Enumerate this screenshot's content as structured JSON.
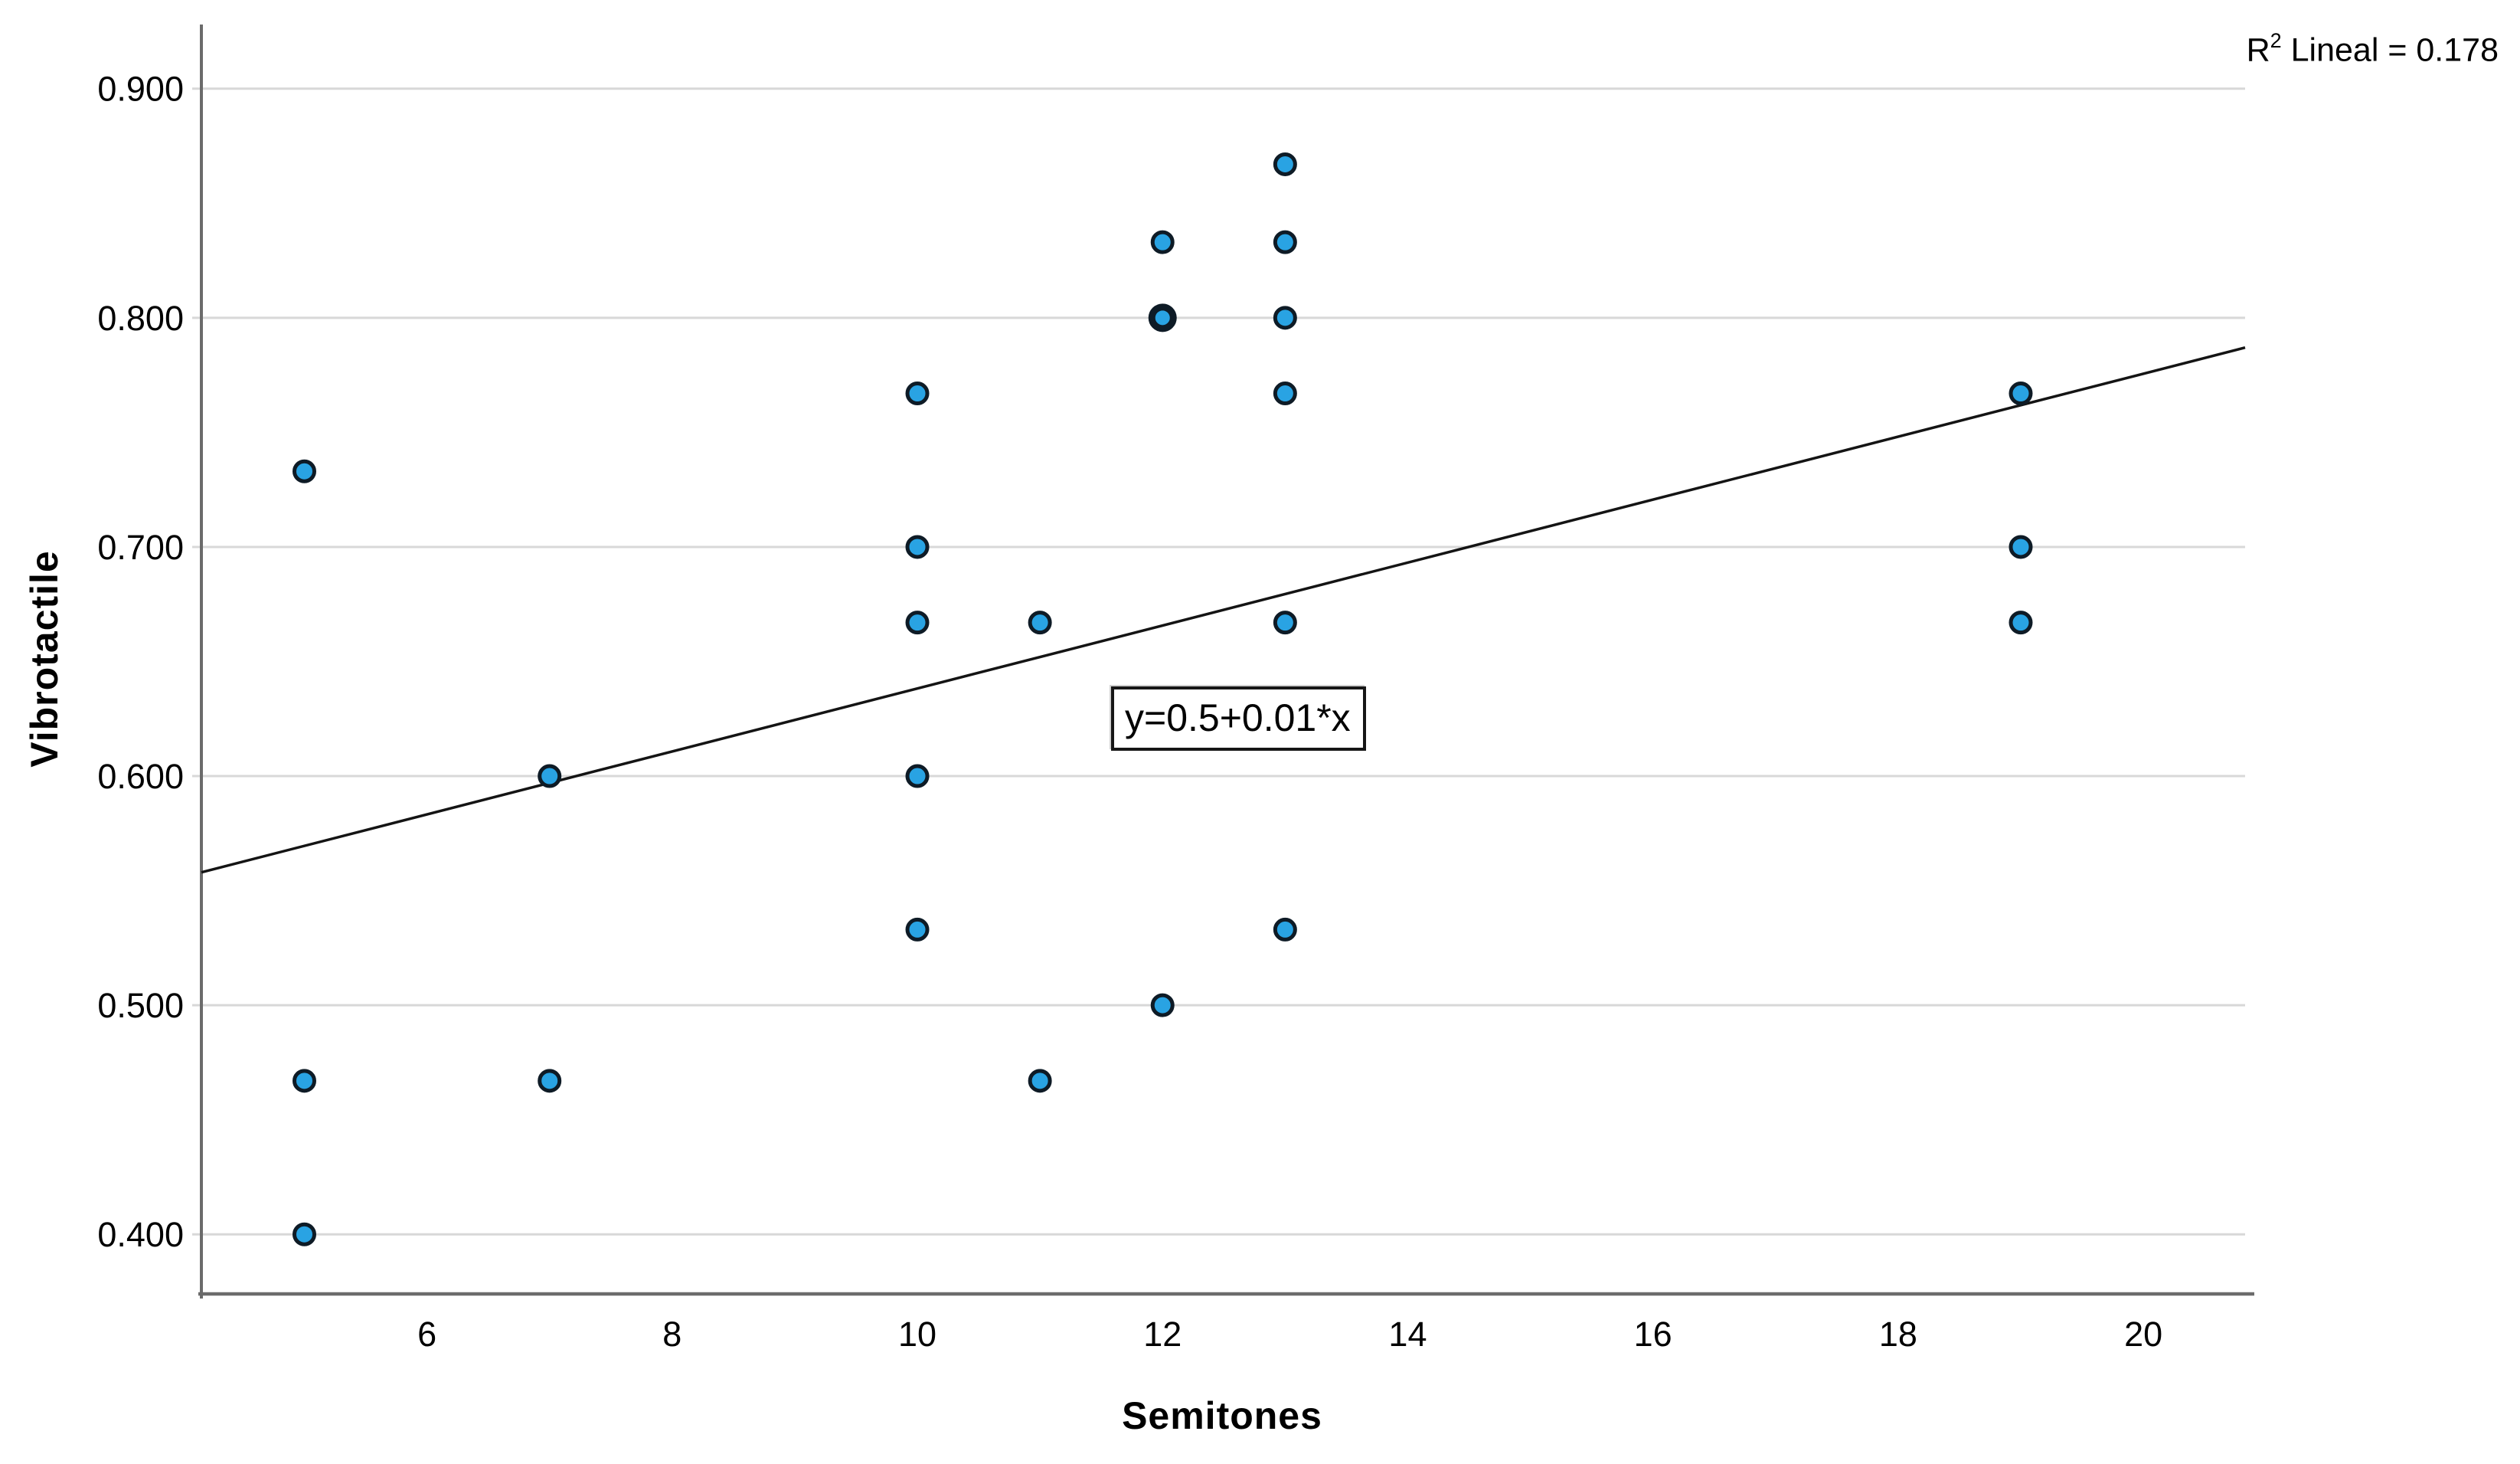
{
  "page": {
    "background": "#FFFFFF"
  },
  "annotations": {
    "r2": {
      "base": "R",
      "sup": "2",
      "rest": " Lineal = 0.178"
    }
  },
  "chart_data": {
    "type": "scatter",
    "title": "",
    "xlabel": "Semitones",
    "ylabel": "Vibrotactile",
    "xlim": [
      4.16,
      20.83
    ],
    "ylim": [
      0.374,
      0.928
    ],
    "grid": "horizontal-only",
    "legend": "none",
    "x_ticks": [
      {
        "value": 6,
        "label": "6"
      },
      {
        "value": 8,
        "label": "8"
      },
      {
        "value": 10,
        "label": "10"
      },
      {
        "value": 12,
        "label": "12"
      },
      {
        "value": 14,
        "label": "14"
      },
      {
        "value": 16,
        "label": "16"
      },
      {
        "value": 18,
        "label": "18"
      },
      {
        "value": 20,
        "label": "20"
      }
    ],
    "y_ticks": [
      {
        "value": 0.9,
        "label": "0.900"
      },
      {
        "value": 0.8,
        "label": "0.800"
      },
      {
        "value": 0.7,
        "label": "0.700"
      },
      {
        "value": 0.6,
        "label": "0.600"
      },
      {
        "value": 0.5,
        "label": "0.500"
      },
      {
        "value": 0.4,
        "label": "0.400"
      }
    ],
    "points": [
      {
        "x": 5,
        "y": 0.733
      },
      {
        "x": 5,
        "y": 0.467
      },
      {
        "x": 5,
        "y": 0.4
      },
      {
        "x": 7,
        "y": 0.6
      },
      {
        "x": 7,
        "y": 0.467
      },
      {
        "x": 10,
        "y": 0.767
      },
      {
        "x": 10,
        "y": 0.7
      },
      {
        "x": 10,
        "y": 0.667
      },
      {
        "x": 10,
        "y": 0.6
      },
      {
        "x": 10,
        "y": 0.533
      },
      {
        "x": 11,
        "y": 0.667
      },
      {
        "x": 11,
        "y": 0.467
      },
      {
        "x": 12,
        "y": 0.833
      },
      {
        "x": 12,
        "y": 0.8,
        "bold": true
      },
      {
        "x": 12,
        "y": 0.5
      },
      {
        "x": 13,
        "y": 0.867
      },
      {
        "x": 13,
        "y": 0.833
      },
      {
        "x": 13,
        "y": 0.8
      },
      {
        "x": 13,
        "y": 0.767
      },
      {
        "x": 13,
        "y": 0.667
      },
      {
        "x": 13,
        "y": 0.533
      },
      {
        "x": 19,
        "y": 0.767
      },
      {
        "x": 19,
        "y": 0.7
      },
      {
        "x": 19,
        "y": 0.667
      }
    ],
    "regression": {
      "label": "y=0.5+0.01*x",
      "x_start": 4.16,
      "y_start": 0.558,
      "x_end": 20.83,
      "y_end": 0.787,
      "label_pos": {
        "x": 11.58,
        "y": 0.639
      }
    },
    "r2_text": "R2 Lineal = 0.178",
    "colors": {
      "marker_fill": "#29A3E3",
      "marker_stroke": "#0E1B26",
      "grid": "#D8D8D8",
      "axis": "#6B6B6B",
      "regression_line": "#141414",
      "text": "#000000",
      "background": "#FFFFFF"
    }
  }
}
